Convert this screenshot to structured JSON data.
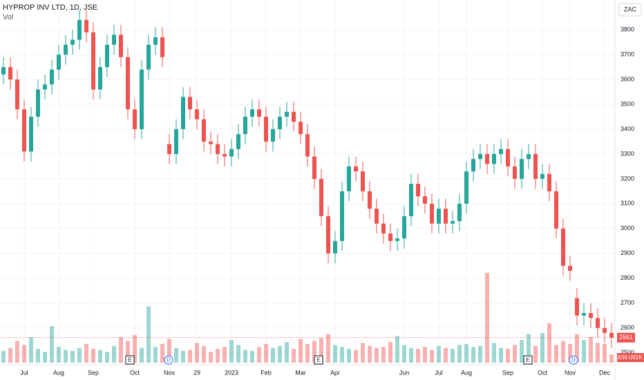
{
  "chart_data": {
    "type": "candlestick",
    "title": "HYPROP INV LTD, 1D, JSE",
    "volume_title": "Vol",
    "currency": "ZAC",
    "up_color": "#26a69a",
    "down_color": "#ef5350",
    "grid": true,
    "ylim": [
      2460,
      3920
    ],
    "yticks": [
      2500,
      2600,
      2700,
      2800,
      2900,
      3000,
      3100,
      3200,
      3300,
      3400,
      3500,
      3600,
      3700,
      3800
    ],
    "categories": [
      null,
      null,
      null,
      "Jul",
      null,
      null,
      null,
      null,
      "Aug",
      null,
      null,
      null,
      null,
      "Sep",
      null,
      null,
      null,
      null,
      null,
      "Oct",
      null,
      null,
      null,
      null,
      "Nov",
      null,
      null,
      null,
      "29",
      null,
      null,
      null,
      null,
      "2023",
      null,
      null,
      null,
      null,
      "Feb",
      null,
      null,
      null,
      null,
      "Mar",
      null,
      null,
      null,
      null,
      "Apr",
      null,
      null,
      null,
      null,
      null,
      null,
      null,
      null,
      null,
      "Jun",
      null,
      null,
      null,
      null,
      "Jul",
      null,
      null,
      null,
      "Aug",
      null,
      null,
      null,
      null,
      null,
      "Sep",
      null,
      null,
      null,
      null,
      "Oct",
      null,
      null,
      null,
      "Nov",
      null,
      null,
      null,
      null,
      "Dec",
      null
    ],
    "open": [
      3620,
      3650,
      3600,
      3480,
      3310,
      3450,
      3560,
      3580,
      3640,
      3700,
      3740,
      3760,
      3840,
      3790,
      3560,
      3650,
      3740,
      3780,
      3690,
      3480,
      3400,
      3640,
      3740,
      3770,
      3340,
      3300,
      3400,
      3530,
      3480,
      3440,
      3350,
      3340,
      3300,
      3290,
      3320,
      3380,
      3450,
      3480,
      3450,
      3350,
      3400,
      3450,
      3470,
      3430,
      3380,
      3290,
      3200,
      3050,
      2900,
      2950,
      3150,
      3250,
      3230,
      3150,
      3080,
      3020,
      2980,
      2950,
      2960,
      3050,
      3180,
      3130,
      3100,
      3020,
      3080,
      3020,
      3030,
      3100,
      3230,
      3280,
      3300,
      3260,
      3300,
      3320,
      3250,
      3200,
      3280,
      3300,
      3200,
      3220,
      3150,
      3000,
      2850,
      2720,
      2650,
      2660,
      2640,
      2600,
      2580
    ],
    "high": [
      3690,
      3690,
      3640,
      3520,
      3490,
      3600,
      3620,
      3680,
      3740,
      3780,
      3800,
      3880,
      3880,
      3830,
      3690,
      3780,
      3820,
      3820,
      3730,
      3520,
      3680,
      3780,
      3810,
      3810,
      3380,
      3440,
      3570,
      3570,
      3520,
      3480,
      3390,
      3380,
      3340,
      3360,
      3420,
      3490,
      3520,
      3520,
      3490,
      3440,
      3490,
      3510,
      3510,
      3470,
      3420,
      3330,
      3240,
      3090,
      2990,
      3190,
      3290,
      3290,
      3270,
      3190,
      3120,
      3060,
      3020,
      3000,
      3090,
      3220,
      3220,
      3170,
      3140,
      3120,
      3120,
      3070,
      3140,
      3270,
      3320,
      3340,
      3340,
      3340,
      3360,
      3360,
      3290,
      3320,
      3340,
      3340,
      3260,
      3260,
      3190,
      3040,
      2890,
      2760,
      2700,
      2700,
      2680,
      2640,
      2620
    ],
    "low": [
      3580,
      3560,
      3440,
      3270,
      3270,
      3410,
      3520,
      3540,
      3600,
      3660,
      3700,
      3720,
      3750,
      3520,
      3520,
      3610,
      3700,
      3650,
      3440,
      3360,
      3360,
      3600,
      3700,
      3650,
      3260,
      3260,
      3360,
      3440,
      3400,
      3310,
      3300,
      3260,
      3250,
      3250,
      3280,
      3340,
      3410,
      3410,
      3310,
      3310,
      3360,
      3410,
      3390,
      3340,
      3250,
      3160,
      3010,
      2860,
      2860,
      2910,
      3110,
      3190,
      3110,
      3040,
      2980,
      2940,
      2910,
      2910,
      2920,
      3010,
      3090,
      3060,
      2980,
      2980,
      2980,
      2980,
      2990,
      3060,
      3190,
      3240,
      3220,
      3220,
      3260,
      3210,
      3160,
      3160,
      3240,
      3160,
      3160,
      3110,
      2960,
      2810,
      2790,
      2610,
      2610,
      2600,
      2560,
      2540,
      2520
    ],
    "close": [
      3650,
      3600,
      3480,
      3310,
      3450,
      3560,
      3580,
      3640,
      3700,
      3740,
      3760,
      3840,
      3790,
      3560,
      3650,
      3740,
      3780,
      3690,
      3480,
      3400,
      3640,
      3740,
      3770,
      3690,
      3300,
      3400,
      3530,
      3480,
      3440,
      3350,
      3340,
      3300,
      3290,
      3320,
      3380,
      3450,
      3480,
      3450,
      3350,
      3400,
      3450,
      3470,
      3430,
      3380,
      3290,
      3200,
      3050,
      2900,
      2950,
      3150,
      3250,
      3230,
      3150,
      3080,
      3020,
      2980,
      2950,
      2960,
      3050,
      3180,
      3130,
      3100,
      3020,
      3080,
      3020,
      3030,
      3100,
      3230,
      3280,
      3300,
      3260,
      3300,
      3320,
      3250,
      3200,
      3280,
      3300,
      3200,
      3220,
      3150,
      3000,
      2850,
      2830,
      2650,
      2660,
      2640,
      2600,
      2580,
      2561
    ],
    "volume": {
      "vlim": [
        0,
        10000000
      ],
      "values": [
        1200000,
        1500000,
        2200000,
        1800000,
        2600000,
        1400000,
        1100000,
        3700000,
        1600000,
        1300000,
        1200000,
        1500000,
        1900000,
        1400000,
        1300000,
        1100000,
        1700000,
        2600000,
        2200000,
        2800000,
        1500000,
        5700000,
        1600000,
        1900000,
        2400000,
        1500000,
        1200000,
        1300000,
        2000000,
        1700000,
        1100000,
        1400000,
        1600000,
        2300000,
        1800000,
        1300000,
        1200000,
        1600000,
        1900000,
        1500000,
        1700000,
        2100000,
        1400000,
        2400000,
        1900000,
        2200000,
        2500000,
        2900000,
        1800000,
        1600000,
        1400000,
        1300000,
        2000000,
        1700000,
        1500000,
        1600000,
        2100000,
        2700000,
        1800000,
        1500000,
        1400000,
        1600000,
        1300000,
        1700000,
        1500000,
        1400000,
        1800000,
        1900000,
        1600000,
        1700000,
        9100000,
        2000000,
        1500000,
        1400000,
        1800000,
        2300000,
        2900000,
        1700000,
        3000000,
        4000000,
        1800000,
        2200000,
        1900000,
        2900000,
        2300000,
        2600000,
        2000000,
        1900000,
        839092
      ],
      "last_label": "839.092K"
    },
    "events": [
      {
        "label": "E"
      },
      {
        "label": "D"
      },
      {
        "label": "E"
      },
      {
        "label": "E"
      },
      {
        "label": "D"
      }
    ]
  }
}
